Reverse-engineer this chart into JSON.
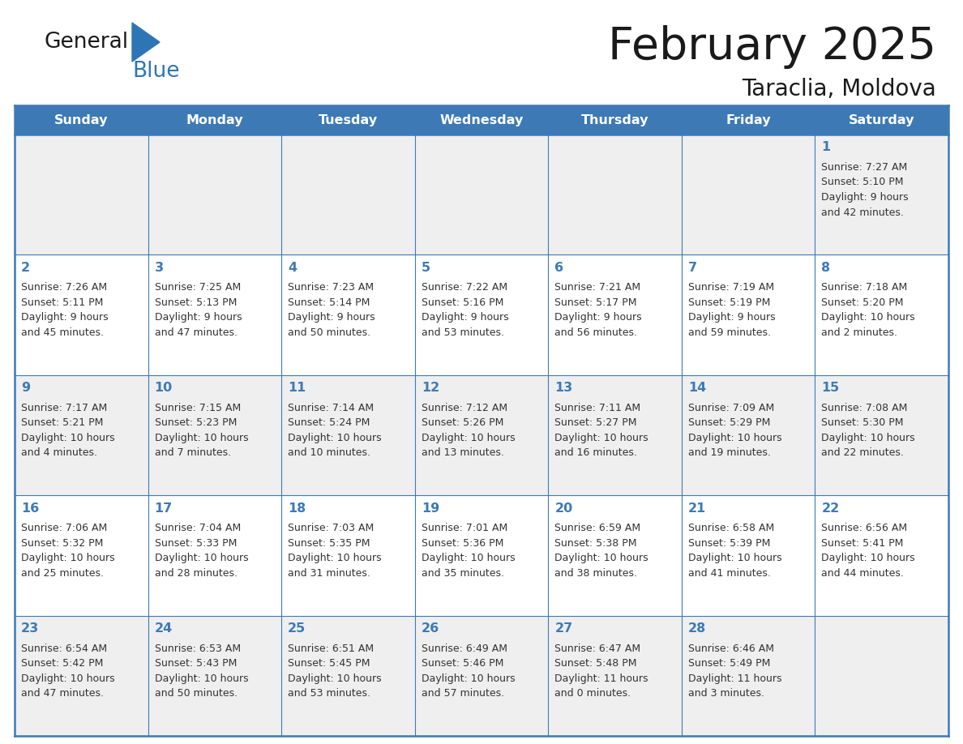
{
  "title": "February 2025",
  "subtitle": "Taraclia, Moldova",
  "header_color": "#3D7AB5",
  "header_text_color": "#FFFFFF",
  "days_of_week": [
    "Sunday",
    "Monday",
    "Tuesday",
    "Wednesday",
    "Thursday",
    "Friday",
    "Saturday"
  ],
  "background_color": "#FFFFFF",
  "cell_bg_even": "#EFEFEF",
  "cell_bg_odd": "#FFFFFF",
  "border_color": "#3D7AB5",
  "day_num_color": "#3D7AB5",
  "text_color": "#333333",
  "logo_general_color": "#1a1a1a",
  "logo_blue_color": "#2E86C1",
  "weeks": [
    [
      {
        "day": null,
        "info": null
      },
      {
        "day": null,
        "info": null
      },
      {
        "day": null,
        "info": null
      },
      {
        "day": null,
        "info": null
      },
      {
        "day": null,
        "info": null
      },
      {
        "day": null,
        "info": null
      },
      {
        "day": 1,
        "info": "Sunrise: 7:27 AM\nSunset: 5:10 PM\nDaylight: 9 hours\nand 42 minutes."
      }
    ],
    [
      {
        "day": 2,
        "info": "Sunrise: 7:26 AM\nSunset: 5:11 PM\nDaylight: 9 hours\nand 45 minutes."
      },
      {
        "day": 3,
        "info": "Sunrise: 7:25 AM\nSunset: 5:13 PM\nDaylight: 9 hours\nand 47 minutes."
      },
      {
        "day": 4,
        "info": "Sunrise: 7:23 AM\nSunset: 5:14 PM\nDaylight: 9 hours\nand 50 minutes."
      },
      {
        "day": 5,
        "info": "Sunrise: 7:22 AM\nSunset: 5:16 PM\nDaylight: 9 hours\nand 53 minutes."
      },
      {
        "day": 6,
        "info": "Sunrise: 7:21 AM\nSunset: 5:17 PM\nDaylight: 9 hours\nand 56 minutes."
      },
      {
        "day": 7,
        "info": "Sunrise: 7:19 AM\nSunset: 5:19 PM\nDaylight: 9 hours\nand 59 minutes."
      },
      {
        "day": 8,
        "info": "Sunrise: 7:18 AM\nSunset: 5:20 PM\nDaylight: 10 hours\nand 2 minutes."
      }
    ],
    [
      {
        "day": 9,
        "info": "Sunrise: 7:17 AM\nSunset: 5:21 PM\nDaylight: 10 hours\nand 4 minutes."
      },
      {
        "day": 10,
        "info": "Sunrise: 7:15 AM\nSunset: 5:23 PM\nDaylight: 10 hours\nand 7 minutes."
      },
      {
        "day": 11,
        "info": "Sunrise: 7:14 AM\nSunset: 5:24 PM\nDaylight: 10 hours\nand 10 minutes."
      },
      {
        "day": 12,
        "info": "Sunrise: 7:12 AM\nSunset: 5:26 PM\nDaylight: 10 hours\nand 13 minutes."
      },
      {
        "day": 13,
        "info": "Sunrise: 7:11 AM\nSunset: 5:27 PM\nDaylight: 10 hours\nand 16 minutes."
      },
      {
        "day": 14,
        "info": "Sunrise: 7:09 AM\nSunset: 5:29 PM\nDaylight: 10 hours\nand 19 minutes."
      },
      {
        "day": 15,
        "info": "Sunrise: 7:08 AM\nSunset: 5:30 PM\nDaylight: 10 hours\nand 22 minutes."
      }
    ],
    [
      {
        "day": 16,
        "info": "Sunrise: 7:06 AM\nSunset: 5:32 PM\nDaylight: 10 hours\nand 25 minutes."
      },
      {
        "day": 17,
        "info": "Sunrise: 7:04 AM\nSunset: 5:33 PM\nDaylight: 10 hours\nand 28 minutes."
      },
      {
        "day": 18,
        "info": "Sunrise: 7:03 AM\nSunset: 5:35 PM\nDaylight: 10 hours\nand 31 minutes."
      },
      {
        "day": 19,
        "info": "Sunrise: 7:01 AM\nSunset: 5:36 PM\nDaylight: 10 hours\nand 35 minutes."
      },
      {
        "day": 20,
        "info": "Sunrise: 6:59 AM\nSunset: 5:38 PM\nDaylight: 10 hours\nand 38 minutes."
      },
      {
        "day": 21,
        "info": "Sunrise: 6:58 AM\nSunset: 5:39 PM\nDaylight: 10 hours\nand 41 minutes."
      },
      {
        "day": 22,
        "info": "Sunrise: 6:56 AM\nSunset: 5:41 PM\nDaylight: 10 hours\nand 44 minutes."
      }
    ],
    [
      {
        "day": 23,
        "info": "Sunrise: 6:54 AM\nSunset: 5:42 PM\nDaylight: 10 hours\nand 47 minutes."
      },
      {
        "day": 24,
        "info": "Sunrise: 6:53 AM\nSunset: 5:43 PM\nDaylight: 10 hours\nand 50 minutes."
      },
      {
        "day": 25,
        "info": "Sunrise: 6:51 AM\nSunset: 5:45 PM\nDaylight: 10 hours\nand 53 minutes."
      },
      {
        "day": 26,
        "info": "Sunrise: 6:49 AM\nSunset: 5:46 PM\nDaylight: 10 hours\nand 57 minutes."
      },
      {
        "day": 27,
        "info": "Sunrise: 6:47 AM\nSunset: 5:48 PM\nDaylight: 11 hours\nand 0 minutes."
      },
      {
        "day": 28,
        "info": "Sunrise: 6:46 AM\nSunset: 5:49 PM\nDaylight: 11 hours\nand 3 minutes."
      },
      {
        "day": null,
        "info": null
      }
    ]
  ]
}
